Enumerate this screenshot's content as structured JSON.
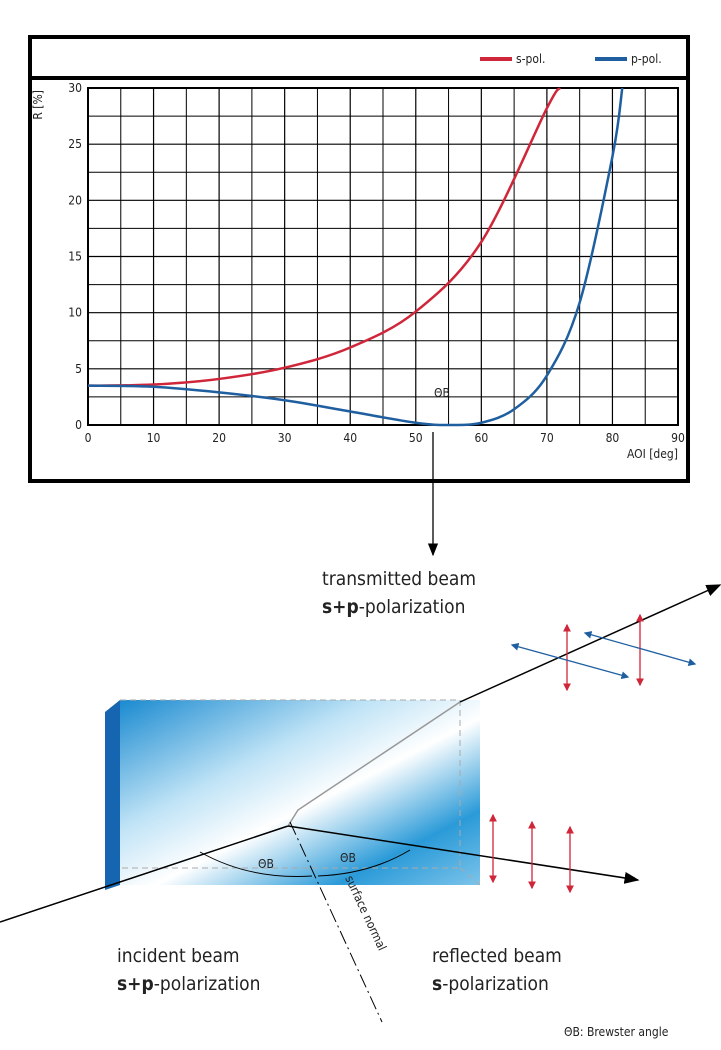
{
  "chart_data": {
    "type": "line",
    "x_label": "AOI [deg]",
    "y_label": "R [%]",
    "xlim": [
      0,
      90
    ],
    "xticks": [
      0,
      10,
      20,
      30,
      40,
      50,
      60,
      70,
      80,
      90
    ],
    "ylim": [
      0,
      30
    ],
    "yticks": [
      0,
      5,
      10,
      15,
      20,
      25,
      30
    ],
    "grid": true,
    "minor_grid": true,
    "legend": "top-right",
    "series": [
      {
        "name": "s-pol.",
        "color": "#d0263a",
        "x": [
          0,
          10,
          20,
          30,
          40,
          50,
          60,
          70,
          72
        ],
        "values": [
          3.5,
          3.6,
          4.1,
          5.1,
          6.9,
          10.1,
          16.3,
          28.2,
          30
        ]
      },
      {
        "name": "p-pol.",
        "color": "#1f5fa0",
        "x": [
          0,
          10,
          20,
          30,
          40,
          50,
          55,
          60,
          65,
          70,
          75,
          80,
          81.5
        ],
        "values": [
          3.5,
          3.4,
          2.9,
          2.2,
          1.2,
          0.2,
          0,
          0.2,
          1.4,
          4.4,
          10.9,
          23.9,
          30
        ]
      }
    ],
    "annotation": {
      "text": "ΘB",
      "x": 54
    }
  },
  "diagram": {
    "transmitted": {
      "title": "transmitted beam",
      "bold": "s+p",
      "rest": "-polarization"
    },
    "incident": {
      "title": "incident beam",
      "bold": "s+p",
      "rest": "-polarization"
    },
    "reflected": {
      "title": "reflected beam",
      "bold": "s",
      "rest": "-polarization"
    },
    "normal": "surface normal",
    "angle_left": "ΘB",
    "angle_right": "ΘB",
    "footnote": "ΘB: Brewster angle"
  }
}
